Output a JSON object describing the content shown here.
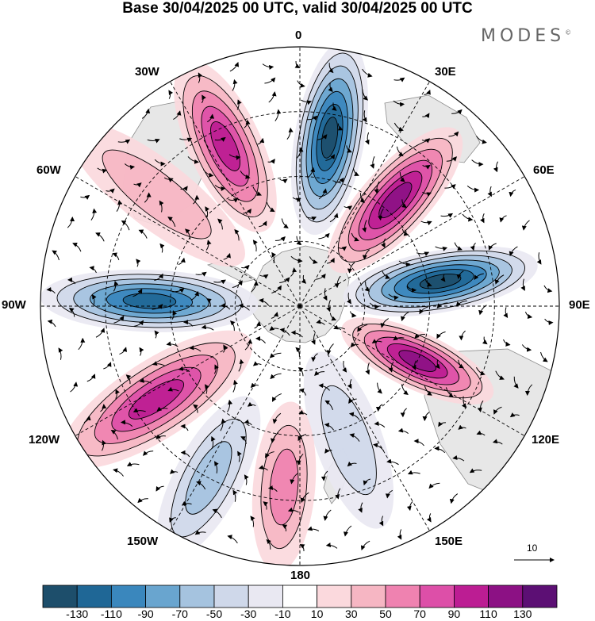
{
  "title": "Base 30/04/2025 00 UTC, valid 30/04/2025 00 UTC",
  "brand": {
    "name": "MODES",
    "mark": "©"
  },
  "longitude_labels": [
    {
      "id": "lon-0",
      "text": "0"
    },
    {
      "id": "lon-30e",
      "text": "30E"
    },
    {
      "id": "lon-60e",
      "text": "60E"
    },
    {
      "id": "lon-90e",
      "text": "90E"
    },
    {
      "id": "lon-120e",
      "text": "120E"
    },
    {
      "id": "lon-150e",
      "text": "150E"
    },
    {
      "id": "lon-180",
      "text": "180"
    },
    {
      "id": "lon-150w",
      "text": "150W"
    },
    {
      "id": "lon-120w",
      "text": "120W"
    },
    {
      "id": "lon-90w",
      "text": "90W"
    },
    {
      "id": "lon-60w",
      "text": "60W"
    },
    {
      "id": "lon-30w",
      "text": "30W"
    }
  ],
  "vector_reference": {
    "label": "10"
  },
  "colorbar": {
    "colors": [
      "#1d4e6b",
      "#1f6796",
      "#3a87bd",
      "#69a5cf",
      "#a5c3df",
      "#cfd8ea",
      "#e9e8f2",
      "#ffffff",
      "#fbd9dd",
      "#f6b6c3",
      "#ef82b0",
      "#dd4fa8",
      "#bc1d93",
      "#8c1184",
      "#5c0f74"
    ],
    "labels": [
      "-130",
      "-110",
      "-90",
      "-70",
      "-50",
      "-30",
      "-10",
      "10",
      "30",
      "50",
      "70",
      "90",
      "110",
      "130"
    ]
  },
  "anomalies": [
    {
      "name": "blue-n",
      "lon": 10,
      "r": 0.66,
      "rx": 0.135,
      "ry": 0.38,
      "value": -130
    },
    {
      "name": "purple-ne",
      "lon": 42,
      "r": 0.55,
      "rx": 0.13,
      "ry": 0.36,
      "value": 120
    },
    {
      "name": "blue-e",
      "lon": 80,
      "r": 0.55,
      "rx": 0.12,
      "ry": 0.38,
      "value": -130
    },
    {
      "name": "purple-se",
      "lon": 115,
      "r": 0.5,
      "rx": 0.11,
      "ry": 0.32,
      "value": 110
    },
    {
      "name": "blue-sse",
      "lon": 160,
      "r": 0.55,
      "rx": 0.13,
      "ry": 0.36,
      "value": -40
    },
    {
      "name": "pink-s",
      "lon": 185,
      "r": 0.7,
      "rx": 0.12,
      "ry": 0.33,
      "value": 50
    },
    {
      "name": "blue-ssw",
      "lon": 208,
      "r": 0.75,
      "rx": 0.13,
      "ry": 0.35,
      "value": -60
    },
    {
      "name": "magenta-sw",
      "lon": 237,
      "r": 0.66,
      "rx": 0.15,
      "ry": 0.43,
      "value": 95
    },
    {
      "name": "blue-w",
      "lon": 272,
      "r": 0.58,
      "rx": 0.12,
      "ry": 0.42,
      "value": -115
    },
    {
      "name": "pink-nw",
      "lon": 308,
      "r": 0.7,
      "rx": 0.13,
      "ry": 0.42,
      "value": 40
    },
    {
      "name": "magenta-nnw",
      "lon": 335,
      "r": 0.68,
      "rx": 0.14,
      "ry": 0.36,
      "value": 95
    }
  ]
}
